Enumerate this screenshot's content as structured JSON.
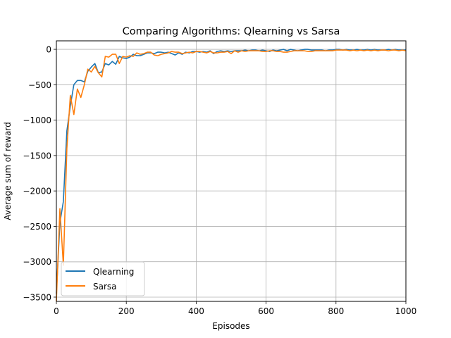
{
  "chart_data": {
    "type": "line",
    "title": "Comparing Algorithms: Qlearning vs Sarsa",
    "xlabel": "Episodes",
    "ylabel": "Average sum of reward",
    "xlim": [
      0,
      1000
    ],
    "ylim": [
      -3560,
      120
    ],
    "xticks": [
      0,
      200,
      400,
      600,
      800,
      1000
    ],
    "yticks": [
      0,
      -500,
      -1000,
      -1500,
      -2000,
      -2500,
      -3000,
      -3500
    ],
    "xtick_labels": [
      "0",
      "200",
      "400",
      "600",
      "800",
      "1000"
    ],
    "ytick_labels": [
      "0",
      "−500",
      "−1000",
      "−1500",
      "−2000",
      "−2500",
      "−3000",
      "−3500"
    ],
    "grid": true,
    "legend_position": "lower-left",
    "x": [
      0,
      10,
      20,
      30,
      40,
      50,
      60,
      70,
      80,
      90,
      100,
      110,
      120,
      130,
      140,
      150,
      160,
      170,
      180,
      190,
      200,
      210,
      220,
      230,
      240,
      250,
      260,
      270,
      280,
      290,
      300,
      310,
      320,
      330,
      340,
      350,
      360,
      370,
      380,
      390,
      400,
      410,
      420,
      430,
      440,
      450,
      460,
      470,
      480,
      490,
      500,
      510,
      520,
      530,
      540,
      550,
      560,
      570,
      580,
      590,
      600,
      610,
      620,
      630,
      640,
      650,
      660,
      670,
      680,
      690,
      700,
      710,
      720,
      730,
      740,
      750,
      760,
      770,
      780,
      790,
      800,
      810,
      820,
      830,
      840,
      850,
      860,
      870,
      880,
      890,
      900,
      910,
      920,
      930,
      940,
      950,
      960,
      970,
      980,
      990,
      1000
    ],
    "series": [
      {
        "name": "Qlearning",
        "color": "#1f77b4",
        "values": [
          -3450,
          -2450,
          -2150,
          -1150,
          -800,
          -500,
          -440,
          -440,
          -460,
          -310,
          -250,
          -200,
          -330,
          -320,
          -200,
          -220,
          -170,
          -210,
          -100,
          -120,
          -130,
          -110,
          -70,
          -90,
          -90,
          -70,
          -50,
          -50,
          -60,
          -40,
          -40,
          -50,
          -40,
          -60,
          -80,
          -50,
          -70,
          -40,
          -50,
          -30,
          -30,
          -40,
          -30,
          -40,
          -20,
          -60,
          -30,
          -20,
          -30,
          -20,
          -30,
          -20,
          -20,
          -20,
          -10,
          -20,
          -10,
          -10,
          -20,
          -10,
          -20,
          -30,
          -10,
          -20,
          -10,
          0,
          -20,
          0,
          -10,
          -20,
          -10,
          0,
          0,
          -10,
          -10,
          -10,
          -10,
          -20,
          -10,
          -10,
          0,
          0,
          -10,
          0,
          -10,
          -10,
          0,
          -10,
          -10,
          0,
          -10,
          0,
          -10,
          -10,
          -10,
          0,
          -10,
          0,
          -10,
          -10,
          -10
        ]
      },
      {
        "name": "Sarsa",
        "color": "#ff7f0e",
        "values": [
          -3560,
          -2250,
          -3050,
          -1400,
          -650,
          -920,
          -560,
          -680,
          -500,
          -280,
          -320,
          -240,
          -330,
          -390,
          -100,
          -110,
          -70,
          -70,
          -200,
          -100,
          -110,
          -90,
          -100,
          -50,
          -70,
          -60,
          -40,
          -40,
          -80,
          -90,
          -70,
          -60,
          -50,
          -30,
          -40,
          -40,
          -60,
          -50,
          -40,
          -50,
          -30,
          -30,
          -40,
          -50,
          -30,
          -50,
          -50,
          -40,
          -40,
          -30,
          -60,
          -20,
          -40,
          -20,
          -30,
          -20,
          -20,
          -20,
          -20,
          -30,
          -30,
          -20,
          -20,
          -30,
          -30,
          -40,
          -40,
          -30,
          -20,
          -20,
          -20,
          -20,
          -30,
          -30,
          -20,
          -20,
          -20,
          -20,
          -20,
          -20,
          -10,
          -10,
          -10,
          -10,
          -20,
          -10,
          -20,
          -10,
          -20,
          -10,
          -20,
          -10,
          -20,
          -10,
          -10,
          -20,
          -10,
          -10,
          -20,
          -10,
          -20
        ]
      }
    ]
  }
}
